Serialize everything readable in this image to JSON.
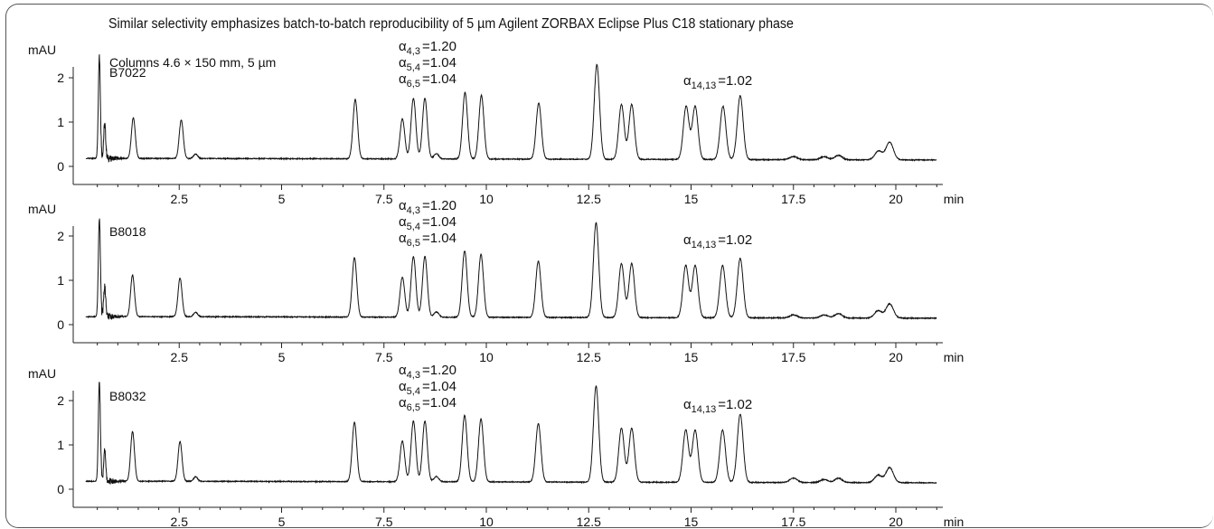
{
  "chart_data": {
    "type": "line",
    "title": "Similar selectivity emphasizes batch-to-batch reproducibility of 5 µm Agilent ZORBAX Eclipse Plus C18 stationary phase",
    "column_note": "Columns  4.6 × 150 mm, 5 µm",
    "ylabel": "mAU",
    "xlabel": "min",
    "xlim": [
      0,
      21
    ],
    "ylim": [
      -0.3,
      2.5
    ],
    "x_ticks": [
      2.5,
      5,
      7.5,
      10,
      12.5,
      15,
      17.5,
      20
    ],
    "x_tick_labels": [
      "2.5",
      "5",
      "7.5",
      "10",
      "12.5",
      "15",
      "17.5",
      "20"
    ],
    "y_ticks": [
      0,
      1,
      2
    ],
    "y_tick_labels": [
      "0",
      "1",
      "2"
    ],
    "baseline": 0.18,
    "annotations": [
      {
        "symbol": "α",
        "subscript": "4,3",
        "text": "=1.20",
        "x": 8.2
      },
      {
        "symbol": "α",
        "subscript": "5,4",
        "text": "=1.04",
        "x": 8.2
      },
      {
        "symbol": "α",
        "subscript": "6,5",
        "text": "=1.04",
        "x": 8.2
      },
      {
        "symbol": "α",
        "subscript": "14,13",
        "text": "=1.02",
        "x": 15.7
      }
    ],
    "series": [
      {
        "name": "B7022",
        "peaks": [
          {
            "x": 0.55,
            "y": 2.5
          },
          {
            "x": 0.68,
            "y": 0.95
          },
          {
            "x": 1.38,
            "y": 1.1
          },
          {
            "x": 2.55,
            "y": 1.05
          },
          {
            "x": 2.9,
            "y": 0.28
          },
          {
            "x": 6.8,
            "y": 1.52
          },
          {
            "x": 7.95,
            "y": 1.08
          },
          {
            "x": 8.22,
            "y": 1.55
          },
          {
            "x": 8.5,
            "y": 1.55
          },
          {
            "x": 8.78,
            "y": 0.3
          },
          {
            "x": 9.48,
            "y": 1.68
          },
          {
            "x": 9.88,
            "y": 1.62
          },
          {
            "x": 11.28,
            "y": 1.45
          },
          {
            "x": 12.7,
            "y": 2.32
          },
          {
            "x": 13.3,
            "y": 1.42
          },
          {
            "x": 13.55,
            "y": 1.42
          },
          {
            "x": 14.88,
            "y": 1.38
          },
          {
            "x": 15.1,
            "y": 1.38
          },
          {
            "x": 15.78,
            "y": 1.38
          },
          {
            "x": 16.2,
            "y": 1.62
          },
          {
            "x": 17.5,
            "y": 0.25
          },
          {
            "x": 18.25,
            "y": 0.25
          },
          {
            "x": 18.6,
            "y": 0.28
          },
          {
            "x": 19.58,
            "y": 0.38
          },
          {
            "x": 19.85,
            "y": 0.58
          }
        ]
      },
      {
        "name": "B8018",
        "peaks": [
          {
            "x": 0.55,
            "y": 2.4
          },
          {
            "x": 0.68,
            "y": 0.85
          },
          {
            "x": 1.36,
            "y": 1.12
          },
          {
            "x": 2.52,
            "y": 1.05
          },
          {
            "x": 2.9,
            "y": 0.28
          },
          {
            "x": 6.78,
            "y": 1.52
          },
          {
            "x": 7.95,
            "y": 1.08
          },
          {
            "x": 8.22,
            "y": 1.55
          },
          {
            "x": 8.5,
            "y": 1.55
          },
          {
            "x": 8.78,
            "y": 0.3
          },
          {
            "x": 9.47,
            "y": 1.68
          },
          {
            "x": 9.87,
            "y": 1.6
          },
          {
            "x": 11.27,
            "y": 1.45
          },
          {
            "x": 12.68,
            "y": 2.32
          },
          {
            "x": 13.3,
            "y": 1.4
          },
          {
            "x": 13.55,
            "y": 1.4
          },
          {
            "x": 14.87,
            "y": 1.36
          },
          {
            "x": 15.1,
            "y": 1.36
          },
          {
            "x": 15.77,
            "y": 1.36
          },
          {
            "x": 16.2,
            "y": 1.52
          },
          {
            "x": 17.5,
            "y": 0.25
          },
          {
            "x": 18.25,
            "y": 0.25
          },
          {
            "x": 18.6,
            "y": 0.28
          },
          {
            "x": 19.57,
            "y": 0.35
          },
          {
            "x": 19.85,
            "y": 0.5
          }
        ]
      },
      {
        "name": "B8032",
        "peaks": [
          {
            "x": 0.55,
            "y": 2.45
          },
          {
            "x": 0.68,
            "y": 0.9
          },
          {
            "x": 1.36,
            "y": 1.3
          },
          {
            "x": 2.52,
            "y": 1.08
          },
          {
            "x": 2.9,
            "y": 0.28
          },
          {
            "x": 6.78,
            "y": 1.52
          },
          {
            "x": 7.95,
            "y": 1.1
          },
          {
            "x": 8.22,
            "y": 1.55
          },
          {
            "x": 8.5,
            "y": 1.55
          },
          {
            "x": 8.78,
            "y": 0.3
          },
          {
            "x": 9.47,
            "y": 1.68
          },
          {
            "x": 9.87,
            "y": 1.6
          },
          {
            "x": 11.27,
            "y": 1.5
          },
          {
            "x": 12.68,
            "y": 2.35
          },
          {
            "x": 13.3,
            "y": 1.4
          },
          {
            "x": 13.55,
            "y": 1.4
          },
          {
            "x": 14.87,
            "y": 1.36
          },
          {
            "x": 15.1,
            "y": 1.36
          },
          {
            "x": 15.77,
            "y": 1.36
          },
          {
            "x": 16.2,
            "y": 1.72
          },
          {
            "x": 17.5,
            "y": 0.28
          },
          {
            "x": 18.25,
            "y": 0.25
          },
          {
            "x": 18.6,
            "y": 0.28
          },
          {
            "x": 19.57,
            "y": 0.35
          },
          {
            "x": 19.85,
            "y": 0.52
          }
        ]
      }
    ]
  }
}
